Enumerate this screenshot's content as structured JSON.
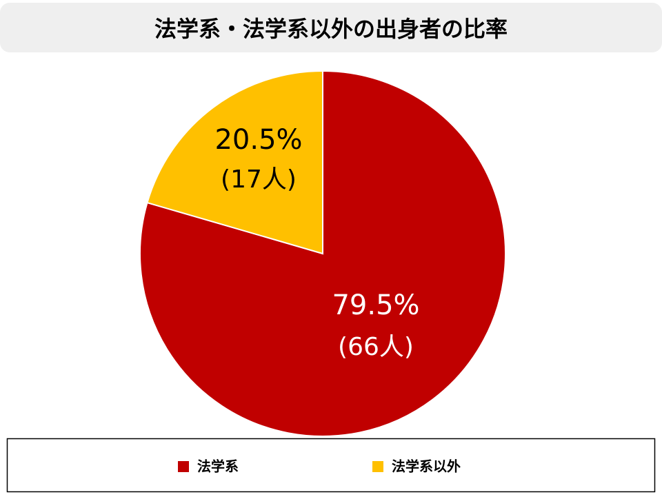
{
  "chart_data": {
    "type": "pie",
    "title": "法学系・法学系以外の出身者の比率",
    "categories": [
      "法学系",
      "法学系以外"
    ],
    "values": [
      79.5,
      20.5
    ],
    "value_labels": [
      "79.5%",
      "20.5%"
    ],
    "count_labels": [
      "(66人)",
      "(17人)"
    ],
    "colors": [
      "#c00000",
      "#ffc000"
    ],
    "label_colors": [
      "#ffffff",
      "#000000"
    ],
    "legend": "bottom"
  }
}
